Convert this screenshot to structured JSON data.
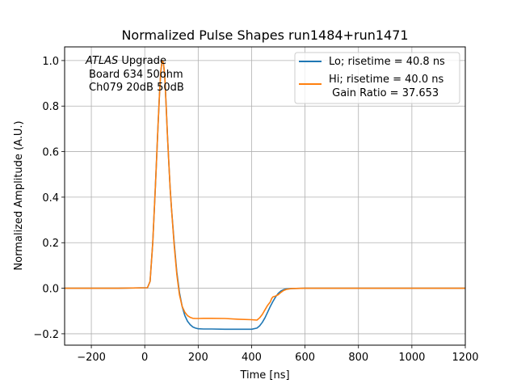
{
  "chart_data": {
    "type": "line",
    "title": "Normalized Pulse Shapes run1484+run1471",
    "xlabel": "Time [ns]",
    "ylabel": "Normalized Amplitude (A.U.)",
    "xlim": [
      -300,
      1200
    ],
    "ylim": [
      -0.25,
      1.06
    ],
    "xticks": [
      -200,
      0,
      200,
      400,
      600,
      800,
      1000,
      1200
    ],
    "xtick_labels": [
      "−200",
      "0",
      "200",
      "400",
      "600",
      "800",
      "1000",
      "1200"
    ],
    "yticks": [
      -0.2,
      0.0,
      0.2,
      0.4,
      0.6,
      0.8,
      1.0
    ],
    "ytick_labels": [
      "−0.2",
      "0.0",
      "0.2",
      "0.4",
      "0.6",
      "0.8",
      "1.0"
    ],
    "grid": true,
    "legend_position": "top-right",
    "annotation": {
      "atlas": "ATLAS",
      "upgrade": " Upgrade",
      "line2": "Board 634 50ohm",
      "line3": "Ch079 20dB 50dB"
    },
    "series": [
      {
        "name": "Lo; risetime = 40.8 ns",
        "color": "#1f77b4",
        "x": [
          -300,
          -100,
          10,
          20,
          30,
          40,
          50,
          55,
          60,
          65,
          70,
          75,
          80,
          85,
          90,
          95,
          100,
          110,
          120,
          130,
          140,
          150,
          160,
          170,
          180,
          190,
          200,
          220,
          250,
          300,
          350,
          400,
          420,
          430,
          440,
          450,
          460,
          470,
          480,
          490,
          500,
          510,
          520,
          530,
          550,
          600,
          700,
          800,
          900,
          1000,
          1100,
          1200
        ],
        "y": [
          0.0,
          0.0,
          0.002,
          0.03,
          0.2,
          0.45,
          0.72,
          0.85,
          0.95,
          1.0,
          0.99,
          0.93,
          0.8,
          0.67,
          0.55,
          0.44,
          0.35,
          0.2,
          0.07,
          -0.02,
          -0.08,
          -0.12,
          -0.145,
          -0.16,
          -0.17,
          -0.175,
          -0.178,
          -0.179,
          -0.179,
          -0.18,
          -0.18,
          -0.18,
          -0.175,
          -0.165,
          -0.15,
          -0.13,
          -0.105,
          -0.08,
          -0.058,
          -0.038,
          -0.022,
          -0.012,
          -0.006,
          -0.003,
          -0.001,
          0.0,
          0.0,
          0.0,
          0.0,
          0.0,
          0.0,
          0.0
        ]
      },
      {
        "name": "Hi; risetime = 40.0 ns",
        "name2": " Gain Ratio = 37.653",
        "color": "#ff7f0e",
        "x": [
          -300,
          -100,
          10,
          20,
          30,
          40,
          50,
          55,
          60,
          65,
          70,
          75,
          80,
          85,
          90,
          95,
          100,
          110,
          120,
          130,
          140,
          150,
          160,
          170,
          180,
          190,
          200,
          220,
          250,
          300,
          350,
          400,
          420,
          430,
          440,
          450,
          460,
          470,
          475,
          480,
          490,
          500,
          510,
          520,
          530,
          550,
          600,
          700,
          800,
          900,
          1000,
          1100,
          1200
        ],
        "y": [
          0.0,
          0.0,
          0.002,
          0.03,
          0.2,
          0.45,
          0.72,
          0.85,
          0.95,
          1.0,
          0.99,
          0.93,
          0.8,
          0.67,
          0.55,
          0.44,
          0.35,
          0.19,
          0.06,
          -0.03,
          -0.08,
          -0.105,
          -0.12,
          -0.128,
          -0.132,
          -0.133,
          -0.133,
          -0.132,
          -0.132,
          -0.133,
          -0.136,
          -0.138,
          -0.14,
          -0.13,
          -0.115,
          -0.095,
          -0.075,
          -0.06,
          -0.045,
          -0.038,
          -0.034,
          -0.028,
          -0.018,
          -0.01,
          -0.005,
          -0.001,
          0.0,
          0.0,
          0.0,
          0.0,
          0.0,
          0.0,
          0.0
        ]
      }
    ]
  }
}
